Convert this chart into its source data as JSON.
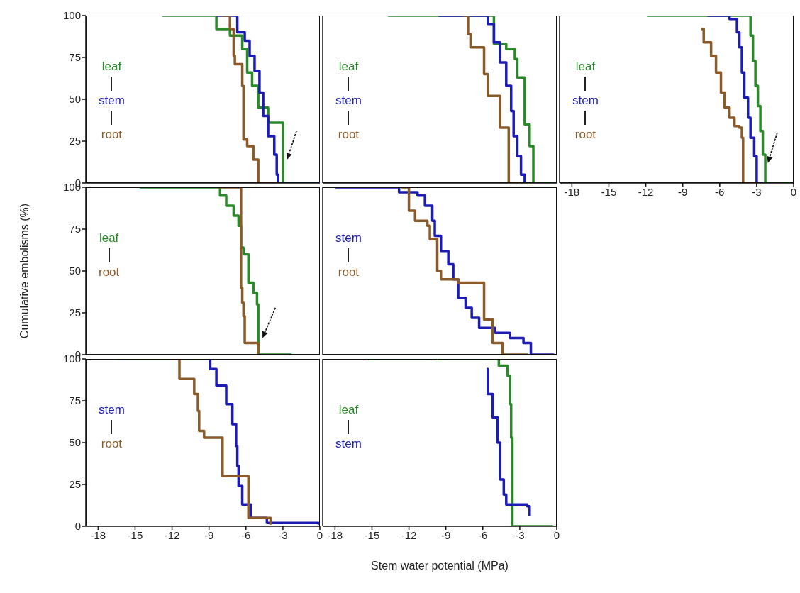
{
  "chart_data": [
    {
      "type": "step",
      "xlim": [
        -19,
        0
      ],
      "xticks": [
        -18,
        -15,
        -12,
        -9,
        -6,
        -3,
        0
      ],
      "ylim": [
        0,
        100
      ],
      "yticks": [
        0,
        25,
        50,
        75,
        100
      ],
      "tick_labels": "y",
      "legend": "left",
      "series": [
        {
          "name": "leaf",
          "color": "#2a8a2a",
          "x": [
            -12.8,
            -9.6,
            -8.4,
            -7.3,
            -6.3,
            -5.9,
            -5.5,
            -5.0,
            -4.2,
            -3.0,
            -3.0,
            0
          ],
          "values": [
            100,
            100,
            92,
            88,
            80,
            66,
            58,
            45,
            36,
            36,
            0,
            0
          ]
        },
        {
          "name": "stem",
          "color": "#1c1cb4",
          "x": [
            -8.4,
            -6.7,
            -6.1,
            -5.7,
            -5.3,
            -4.9,
            -4.6,
            -4.2,
            -3.7,
            -3.5,
            -3.4,
            0
          ],
          "values": [
            100,
            90,
            85,
            76,
            67,
            54,
            40,
            28,
            17,
            5,
            0,
            0
          ]
        },
        {
          "name": "root",
          "color": "#8a5a28",
          "x": [
            -8.0,
            -7.3,
            -7.0,
            -6.9,
            -6.3,
            -6.2,
            -5.9,
            -5.4,
            -5.0,
            -3.2
          ],
          "values": [
            100,
            92,
            76,
            71,
            58,
            26,
            22,
            14,
            0,
            0
          ]
        }
      ]
    },
    {
      "type": "step",
      "xlim": [
        -19,
        0
      ],
      "xticks": [
        -18,
        -15,
        -12,
        -9,
        -6,
        -3,
        0
      ],
      "ylim": [
        0,
        100
      ],
      "yticks": [
        0,
        25,
        50,
        75,
        100
      ],
      "tick_labels": false,
      "legend": "left",
      "series": [
        {
          "name": "leaf",
          "color": "#2a8a2a",
          "x": [
            -13.7,
            -5.6,
            -5.1,
            -4.1,
            -3.4,
            -3.2,
            -2.6,
            -2.6,
            -2.2,
            -1.9,
            -0.5
          ],
          "values": [
            100,
            100,
            83,
            80,
            74,
            63,
            52,
            35,
            22,
            0,
            0
          ]
        },
        {
          "name": "stem",
          "color": "#1c1cb4",
          "x": [
            -9.6,
            -6.2,
            -5.6,
            -5.1,
            -4.6,
            -4.1,
            -3.7,
            -3.5,
            -3.2,
            -2.9,
            -2.6,
            -2.2
          ],
          "values": [
            100,
            100,
            95,
            84,
            72,
            58,
            43,
            28,
            16,
            5,
            0,
            0
          ]
        },
        {
          "name": "root",
          "color": "#8a5a28",
          "x": [
            -7.6,
            -7.2,
            -7.0,
            -5.9,
            -5.6,
            -4.6,
            -3.9,
            -2.9
          ],
          "values": [
            100,
            89,
            81,
            65,
            52,
            33,
            0,
            0
          ]
        }
      ]
    },
    {
      "type": "step",
      "xlim": [
        -19,
        0
      ],
      "xticks": [
        -18,
        -15,
        -12,
        -9,
        -6,
        -3,
        0
      ],
      "ylim": [
        0,
        100
      ],
      "yticks": [
        0,
        25,
        50,
        75,
        100
      ],
      "tick_labels": "x",
      "legend": "left",
      "series": [
        {
          "name": "leaf",
          "color": "#2a8a2a",
          "x": [
            -11.9,
            -3.8,
            -3.5,
            -3.3,
            -3.1,
            -2.9,
            -2.7,
            -2.5,
            -2.3,
            -0.2
          ],
          "values": [
            100,
            100,
            88,
            73,
            58,
            46,
            31,
            17,
            0,
            0
          ]
        },
        {
          "name": "stem",
          "color": "#1c1cb4",
          "x": [
            -7.0,
            -6.0,
            -5.2,
            -4.6,
            -4.4,
            -4.2,
            -4.0,
            -3.7,
            -3.5,
            -3.2,
            -3.0,
            -2.5
          ],
          "values": [
            100,
            100,
            98,
            90,
            81,
            66,
            51,
            39,
            27,
            16,
            0,
            0
          ]
        },
        {
          "name": "root",
          "color": "#8a5a28",
          "x": [
            -7.5,
            -7.3,
            -6.7,
            -6.3,
            -5.9,
            -5.6,
            -5.2,
            -4.8,
            -4.4,
            -4.2,
            -4.1,
            -2.9
          ],
          "values": [
            92,
            84,
            76,
            66,
            54,
            45,
            39,
            34,
            33,
            27,
            0,
            0
          ]
        }
      ]
    },
    {
      "type": "step",
      "xlim": [
        -19,
        0
      ],
      "xticks": [
        -18,
        -15,
        -12,
        -9,
        -6,
        -3,
        0
      ],
      "ylim": [
        0,
        100
      ],
      "yticks": [
        0,
        25,
        50,
        75,
        100
      ],
      "tick_labels": "y",
      "legend": "left",
      "ylabel": "Cumulative embolisms (%)",
      "series": [
        {
          "name": "leaf",
          "color": "#2a8a2a",
          "x": [
            -14.6,
            -8.3,
            -8.1,
            -7.6,
            -7.0,
            -6.6,
            -6.4,
            -6.2,
            -5.8,
            -5.8,
            -5.4,
            -5.1,
            -5.0,
            -2.3
          ],
          "values": [
            100,
            100,
            95,
            89,
            83,
            77,
            64,
            60,
            57,
            43,
            37,
            30,
            0,
            0
          ]
        },
        {
          "name": "root",
          "color": "#8a5a28",
          "x": [
            -8.3,
            -6.4,
            -6.3,
            -6.2,
            -6.1,
            -5.0,
            -4.9
          ],
          "values": [
            100,
            40,
            31,
            23,
            7,
            0,
            0
          ]
        }
      ]
    },
    {
      "type": "step",
      "xlim": [
        -19,
        0
      ],
      "xticks": [
        -18,
        -15,
        -12,
        -9,
        -6,
        -3,
        0
      ],
      "ylim": [
        0,
        100
      ],
      "yticks": [
        0,
        25,
        50,
        75,
        100
      ],
      "tick_labels": false,
      "legend": "left",
      "series": [
        {
          "name": "stem",
          "color": "#1c1cb4",
          "x": [
            -18.0,
            -12.8,
            -11.3,
            -10.7,
            -10.1,
            -9.9,
            -9.4,
            -8.8,
            -8.4,
            -8.0,
            -7.4,
            -6.9,
            -6.3,
            -5.0,
            -3.8,
            -2.7,
            -2.1,
            -0.2
          ],
          "values": [
            100,
            97,
            95,
            89,
            80,
            71,
            62,
            54,
            45,
            34,
            28,
            22,
            16,
            13,
            10,
            7,
            0,
            0
          ]
        },
        {
          "name": "root",
          "color": "#8a5a28",
          "x": [
            -12.6,
            -12.0,
            -11.5,
            -10.5,
            -10.3,
            -9.7,
            -9.4,
            -8.0,
            -5.9,
            -5.9,
            -5.2,
            -5.2,
            -4.4,
            -2.3
          ],
          "values": [
            100,
            86,
            80,
            77,
            69,
            50,
            45,
            43,
            36,
            21,
            19,
            7,
            0,
            0
          ]
        }
      ]
    },
    {
      "type": "step",
      "xlim": [
        -19,
        0
      ],
      "xticks": [
        -18,
        -15,
        -12,
        -9,
        -6,
        -3,
        0
      ],
      "ylim": [
        0,
        100
      ],
      "yticks": [
        0,
        25,
        50,
        75,
        100
      ],
      "legend": "left",
      "series": [
        {
          "name": "stem",
          "color": "#1c1cb4",
          "x": [
            -16.3,
            -9.3,
            -8.9,
            -8.4,
            -7.6,
            -7.1,
            -6.8,
            -6.7,
            -6.6,
            -6.3,
            -5.6,
            -4.3,
            -0.1
          ],
          "values": [
            100,
            100,
            94,
            84,
            73,
            61,
            48,
            36,
            24,
            13,
            5,
            2,
            1
          ]
        },
        {
          "name": "root",
          "color": "#8a5a28",
          "x": [
            -12.1,
            -11.4,
            -10.2,
            -10.2,
            -9.9,
            -9.8,
            -9.4,
            -7.9,
            -7.9,
            -6.3,
            -5.8,
            -5.8,
            -4.0
          ],
          "values": [
            100,
            88,
            87,
            79,
            69,
            57,
            53,
            48,
            30,
            30,
            25,
            5,
            1
          ]
        }
      ]
    },
    {
      "type": "step",
      "xlim": [
        -19,
        0
      ],
      "xticks": [
        -18,
        -15,
        -12,
        -9,
        -6,
        -3,
        0
      ],
      "ylim": [
        0,
        100
      ],
      "yticks": [
        0,
        25,
        50,
        75,
        100
      ],
      "tick_labels": "x",
      "legend": "left",
      "xlabel": "Stem water potential (MPa)",
      "series": [
        {
          "name": "leaf",
          "color": "#2a8a2a",
          "x": [
            -15.3,
            -10.1,
            -9.9,
            -9.7,
            -5.7,
            -4.7,
            -4.0,
            -3.8,
            -3.7,
            -3.6,
            -3.6,
            -0.3
          ],
          "values": [
            100,
            100,
            null,
            100,
            100,
            96,
            90,
            73,
            53,
            32,
            0,
            0
          ]
        },
        {
          "name": "stem",
          "color": "#1c1cb4",
          "x": [
            -5.7,
            -5.6,
            -5.2,
            -4.8,
            -4.6,
            -4.3,
            -4.1,
            -2.4,
            -2.2
          ],
          "values": [
            94,
            79,
            65,
            50,
            28,
            19,
            13,
            12,
            6
          ]
        }
      ]
    }
  ]
}
